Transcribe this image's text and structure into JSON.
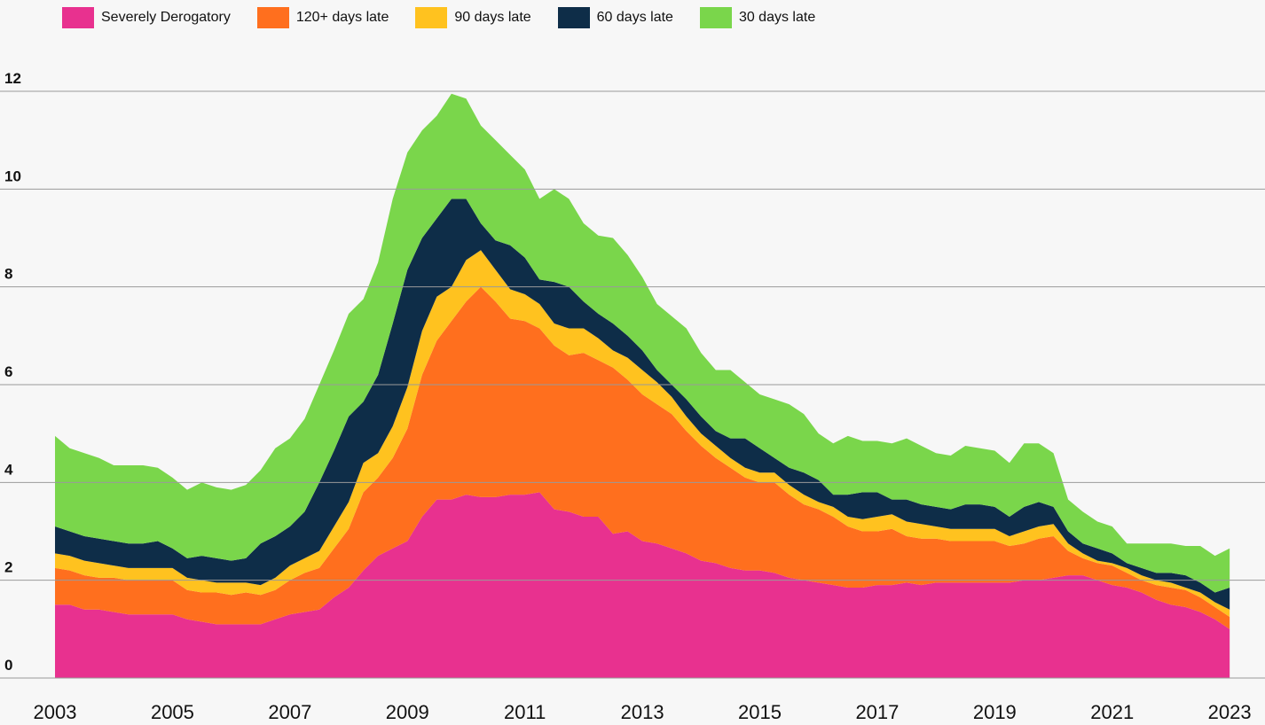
{
  "chart_data": {
    "type": "stacked-area",
    "x": [
      2003,
      2003.25,
      2003.5,
      2003.75,
      2004,
      2004.25,
      2004.5,
      2004.75,
      2005,
      2005.25,
      2005.5,
      2005.75,
      2006,
      2006.25,
      2006.5,
      2006.75,
      2007,
      2007.25,
      2007.5,
      2007.75,
      2008,
      2008.25,
      2008.5,
      2008.75,
      2009,
      2009.25,
      2009.5,
      2009.75,
      2010,
      2010.25,
      2010.5,
      2010.75,
      2011,
      2011.25,
      2011.5,
      2011.75,
      2012,
      2012.25,
      2012.5,
      2012.75,
      2013,
      2013.25,
      2013.5,
      2013.75,
      2014,
      2014.25,
      2014.5,
      2014.75,
      2015,
      2015.25,
      2015.5,
      2015.75,
      2016,
      2016.25,
      2016.5,
      2016.75,
      2017,
      2017.25,
      2017.5,
      2017.75,
      2018,
      2018.25,
      2018.5,
      2018.75,
      2019,
      2019.25,
      2019.5,
      2019.75,
      2020,
      2020.25,
      2020.5,
      2020.75,
      2021,
      2021.25,
      2021.5,
      2021.75,
      2022,
      2022.25,
      2022.5,
      2022.75,
      2023
    ],
    "series": [
      {
        "name": "Severely Derogatory",
        "color": "#e8318f",
        "values": [
          1.5,
          1.5,
          1.4,
          1.4,
          1.35,
          1.3,
          1.3,
          1.3,
          1.3,
          1.2,
          1.15,
          1.1,
          1.1,
          1.1,
          1.1,
          1.2,
          1.3,
          1.35,
          1.4,
          1.65,
          1.85,
          2.2,
          2.5,
          2.65,
          2.8,
          3.3,
          3.65,
          3.65,
          3.75,
          3.7,
          3.7,
          3.75,
          3.75,
          3.8,
          3.45,
          3.4,
          3.3,
          3.3,
          2.95,
          3.0,
          2.8,
          2.75,
          2.65,
          2.55,
          2.4,
          2.35,
          2.25,
          2.2,
          2.2,
          2.15,
          2.05,
          2.0,
          1.95,
          1.9,
          1.85,
          1.85,
          1.9,
          1.9,
          1.95,
          1.9,
          1.95,
          1.95,
          1.95,
          1.95,
          1.95,
          1.95,
          2.0,
          2.0,
          2.05,
          2.1,
          2.1,
          2.0,
          1.9,
          1.85,
          1.75,
          1.6,
          1.5,
          1.45,
          1.35,
          1.2,
          1.0
        ]
      },
      {
        "name": "120+ days late",
        "color": "#ff6f1e",
        "values": [
          0.75,
          0.7,
          0.7,
          0.65,
          0.7,
          0.7,
          0.7,
          0.7,
          0.7,
          0.6,
          0.6,
          0.65,
          0.6,
          0.65,
          0.6,
          0.6,
          0.7,
          0.8,
          0.85,
          1.0,
          1.2,
          1.6,
          1.6,
          1.85,
          2.3,
          2.9,
          3.25,
          3.65,
          3.95,
          4.3,
          4.0,
          3.6,
          3.55,
          3.35,
          3.35,
          3.2,
          3.35,
          3.2,
          3.4,
          3.1,
          3.0,
          2.85,
          2.75,
          2.5,
          2.35,
          2.15,
          2.05,
          1.9,
          1.8,
          1.85,
          1.7,
          1.55,
          1.5,
          1.4,
          1.25,
          1.15,
          1.1,
          1.15,
          0.95,
          0.95,
          0.9,
          0.85,
          0.85,
          0.85,
          0.85,
          0.75,
          0.75,
          0.85,
          0.85,
          0.5,
          0.35,
          0.35,
          0.4,
          0.3,
          0.25,
          0.3,
          0.35,
          0.35,
          0.3,
          0.25,
          0.25
        ]
      },
      {
        "name": "90 days late",
        "color": "#ffc21f",
        "values": [
          0.3,
          0.3,
          0.3,
          0.3,
          0.25,
          0.25,
          0.25,
          0.25,
          0.25,
          0.25,
          0.25,
          0.2,
          0.25,
          0.2,
          0.2,
          0.25,
          0.3,
          0.3,
          0.35,
          0.45,
          0.55,
          0.6,
          0.5,
          0.65,
          0.85,
          0.9,
          0.9,
          0.7,
          0.85,
          0.75,
          0.65,
          0.6,
          0.55,
          0.5,
          0.45,
          0.55,
          0.5,
          0.45,
          0.35,
          0.45,
          0.5,
          0.45,
          0.35,
          0.3,
          0.25,
          0.25,
          0.2,
          0.2,
          0.2,
          0.2,
          0.2,
          0.2,
          0.15,
          0.2,
          0.2,
          0.25,
          0.3,
          0.3,
          0.3,
          0.3,
          0.25,
          0.25,
          0.25,
          0.25,
          0.25,
          0.2,
          0.25,
          0.25,
          0.25,
          0.15,
          0.1,
          0.05,
          0.05,
          0.1,
          0.1,
          0.1,
          0.1,
          0.05,
          0.1,
          0.1,
          0.15
        ]
      },
      {
        "name": "60 days late",
        "color": "#0e2d48",
        "values": [
          0.55,
          0.5,
          0.5,
          0.5,
          0.5,
          0.5,
          0.5,
          0.55,
          0.4,
          0.4,
          0.5,
          0.5,
          0.45,
          0.5,
          0.85,
          0.85,
          0.8,
          0.95,
          1.4,
          1.55,
          1.75,
          1.25,
          1.6,
          2.1,
          2.4,
          1.9,
          1.6,
          1.8,
          1.25,
          0.55,
          0.6,
          0.9,
          0.75,
          0.5,
          0.85,
          0.85,
          0.55,
          0.5,
          0.55,
          0.45,
          0.4,
          0.25,
          0.25,
          0.35,
          0.35,
          0.3,
          0.4,
          0.6,
          0.5,
          0.3,
          0.35,
          0.45,
          0.45,
          0.25,
          0.45,
          0.55,
          0.5,
          0.3,
          0.45,
          0.4,
          0.4,
          0.4,
          0.5,
          0.5,
          0.45,
          0.4,
          0.5,
          0.5,
          0.35,
          0.25,
          0.2,
          0.25,
          0.2,
          0.1,
          0.15,
          0.15,
          0.2,
          0.25,
          0.2,
          0.2,
          0.45
        ]
      },
      {
        "name": "30 days late",
        "color": "#7ad64b",
        "values": [
          1.85,
          1.7,
          1.7,
          1.65,
          1.55,
          1.6,
          1.6,
          1.5,
          1.45,
          1.4,
          1.5,
          1.45,
          1.45,
          1.5,
          1.5,
          1.8,
          1.8,
          1.9,
          2.0,
          2.05,
          2.1,
          2.1,
          2.3,
          2.55,
          2.4,
          2.2,
          2.1,
          2.15,
          2.05,
          2.0,
          2.05,
          1.85,
          1.8,
          1.65,
          1.9,
          1.8,
          1.6,
          1.6,
          1.75,
          1.65,
          1.5,
          1.35,
          1.4,
          1.45,
          1.3,
          1.25,
          1.4,
          1.15,
          1.1,
          1.2,
          1.3,
          1.2,
          0.95,
          1.05,
          1.2,
          1.05,
          1.05,
          1.15,
          1.25,
          1.2,
          1.1,
          1.1,
          1.2,
          1.15,
          1.15,
          1.1,
          1.3,
          1.2,
          1.1,
          0.65,
          0.65,
          0.55,
          0.55,
          0.4,
          0.5,
          0.6,
          0.6,
          0.6,
          0.75,
          0.75,
          0.8
        ]
      }
    ],
    "xlim": [
      2002.9,
      2023.2
    ],
    "xticks": [
      2003,
      2005,
      2007,
      2009,
      2011,
      2013,
      2015,
      2017,
      2019,
      2021,
      2023
    ],
    "ylim": [
      0,
      12
    ],
    "yticks": [
      0,
      2,
      4,
      6,
      8,
      10,
      12
    ],
    "grid": true
  }
}
